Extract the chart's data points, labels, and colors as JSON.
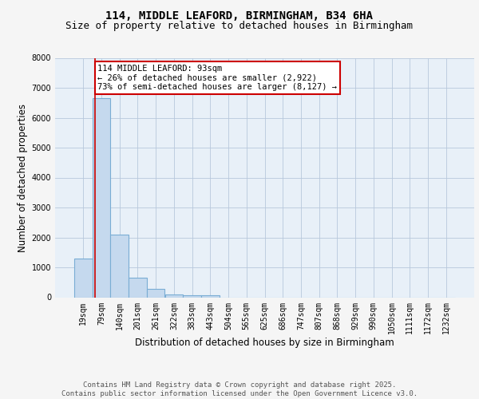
{
  "title1": "114, MIDDLE LEAFORD, BIRMINGHAM, B34 6HA",
  "title2": "Size of property relative to detached houses in Birmingham",
  "xlabel": "Distribution of detached houses by size in Birmingham",
  "ylabel": "Number of detached properties",
  "bar_values": [
    1300,
    6650,
    2100,
    650,
    280,
    100,
    60,
    60,
    0,
    0,
    0,
    0,
    0,
    0,
    0,
    0,
    0,
    0,
    0,
    0,
    0
  ],
  "categories": [
    "19sqm",
    "79sqm",
    "140sqm",
    "201sqm",
    "261sqm",
    "322sqm",
    "383sqm",
    "443sqm",
    "504sqm",
    "565sqm",
    "625sqm",
    "686sqm",
    "747sqm",
    "807sqm",
    "868sqm",
    "929sqm",
    "990sqm",
    "1050sqm",
    "1111sqm",
    "1172sqm",
    "1232sqm"
  ],
  "bar_color": "#c5d9ee",
  "bar_edge_color": "#7aadd4",
  "vline_x_index": 1,
  "vline_x_offset": 0.15,
  "annotation_text": "114 MIDDLE LEAFORD: 93sqm\n← 26% of detached houses are smaller (2,922)\n73% of semi-detached houses are larger (8,127) →",
  "annotation_box_color": "#ffffff",
  "annotation_border_color": "#cc0000",
  "vline_color": "#cc0000",
  "ylim": [
    0,
    8000
  ],
  "yticks": [
    0,
    1000,
    2000,
    3000,
    4000,
    5000,
    6000,
    7000,
    8000
  ],
  "footer": "Contains HM Land Registry data © Crown copyright and database right 2025.\nContains public sector information licensed under the Open Government Licence v3.0.",
  "fig_bg": "#f5f5f5",
  "plot_bg": "#e8f0f8",
  "title_fontsize": 10,
  "subtitle_fontsize": 9,
  "axis_label_fontsize": 8.5,
  "tick_fontsize": 7,
  "annotation_fontsize": 7.5,
  "footer_fontsize": 6.5
}
